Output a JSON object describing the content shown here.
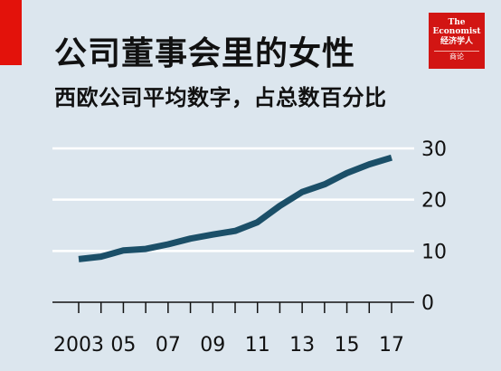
{
  "header": {
    "title": "公司董事会里的女性",
    "subtitle": "西欧公司平均数字，占总数百分比"
  },
  "logo": {
    "line1": "The",
    "line2": "Economist",
    "line3": "经济学人",
    "line4": "商论"
  },
  "colors": {
    "background": "#dce6ee",
    "line": "#1b4f68",
    "brand_red": "#e3120b",
    "grid": "#ffffff"
  },
  "chart_data": {
    "type": "line",
    "title": "公司董事会里的女性",
    "subtitle": "西欧公司平均数字，占总数百分比",
    "x": [
      2003,
      2004,
      2005,
      2006,
      2007,
      2008,
      2009,
      2010,
      2011,
      2012,
      2013,
      2014,
      2015,
      2016,
      2017
    ],
    "series": [
      {
        "values": [
          8.4,
          8.9,
          10.1,
          10.4,
          11.3,
          12.4,
          13.2,
          13.9,
          15.6,
          18.8,
          21.5,
          23.0,
          25.2,
          26.9,
          28.2
        ]
      }
    ],
    "ylim": [
      0,
      30
    ],
    "yticks": [
      0,
      10,
      20,
      30
    ],
    "ytick_labels": [
      "0",
      "10",
      "20",
      "30"
    ],
    "xticks": [
      2003,
      2004,
      2005,
      2006,
      2007,
      2008,
      2009,
      2010,
      2011,
      2012,
      2013,
      2014,
      2015,
      2016,
      2017
    ],
    "xtick_labels": [
      "2003",
      "05",
      "07",
      "09",
      "11",
      "13",
      "15",
      "17"
    ],
    "xtick_label_years": [
      2003,
      2005,
      2007,
      2009,
      2011,
      2013,
      2015,
      2017
    ],
    "grid": true,
    "y_axis_side": "right"
  }
}
